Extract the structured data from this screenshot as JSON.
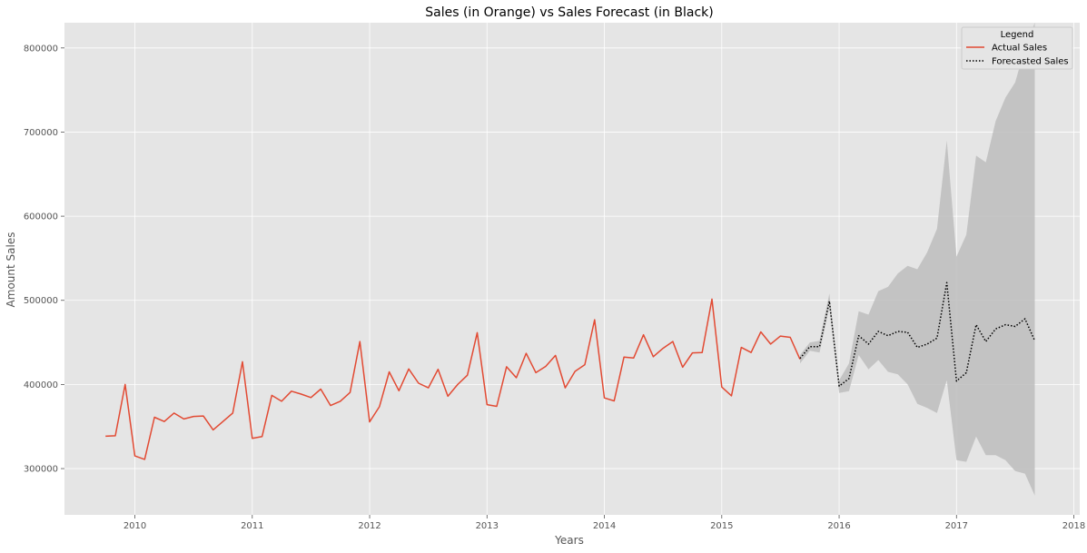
{
  "chart_data": {
    "type": "line",
    "title": "Sales (in Orange) vs Sales Forecast (in Black)",
    "xlabel": "Years",
    "ylabel": "Amount Sales",
    "xlim": [
      2009.4,
      2018.05
    ],
    "ylim": [
      245000,
      830000
    ],
    "grid": true,
    "x_ticks": [
      2010,
      2011,
      2012,
      2013,
      2014,
      2015,
      2016,
      2017,
      2018
    ],
    "x_tick_labels": [
      "2010",
      "2011",
      "2012",
      "2013",
      "2014",
      "2015",
      "2016",
      "2017",
      "2018"
    ],
    "y_ticks": [
      300000,
      400000,
      500000,
      600000,
      700000,
      800000
    ],
    "y_tick_labels": [
      "300000",
      "400000",
      "500000",
      "600000",
      "700000",
      "800000"
    ],
    "legend": {
      "title": "Legend",
      "position": "top-right",
      "entries": [
        "Actual Sales",
        "Forecasted Sales"
      ]
    },
    "colors": {
      "actual": "#e24a33",
      "forecast": "#000000",
      "band": "#bdbdbd",
      "background": "#e5e5e5",
      "grid": "#ffffff"
    },
    "series": [
      {
        "name": "Actual Sales",
        "style": "solid",
        "x_start": 2009.75,
        "x_step": 0.08333,
        "values": [
          338500,
          339000,
          400000,
          315000,
          311000,
          361000,
          356000,
          366000,
          359000,
          362000,
          362500,
          346000,
          356000,
          366000,
          427000,
          336000,
          338000,
          387000,
          380000,
          392000,
          388500,
          384500,
          394500,
          375000,
          380000,
          390500,
          451000,
          355500,
          373500,
          415000,
          392500,
          418500,
          401500,
          396000,
          418000,
          386000,
          400000,
          411000,
          461500,
          376000,
          374000,
          421000,
          408000,
          437000,
          414000,
          421500,
          434500,
          396000,
          415500,
          423500,
          477000,
          384000,
          380500,
          432500,
          431500,
          459000,
          433000,
          443000,
          451000,
          420500,
          437500,
          438000,
          501500,
          397000,
          386500,
          444000,
          438000,
          462500,
          448000,
          457500,
          456000,
          430000
        ]
      },
      {
        "name": "Forecasted Sales",
        "style": "dotted",
        "x_start": 2015.667,
        "x_step": 0.08333,
        "values": [
          431000,
          445000,
          445000,
          499000,
          398000,
          407000,
          458000,
          448000,
          463000,
          458000,
          463000,
          462000,
          444000,
          448000,
          455000,
          521000,
          404000,
          414000,
          471000,
          451000,
          466000,
          471000,
          469000,
          478000,
          452000
        ]
      }
    ],
    "confidence_band": {
      "x_start": 2015.667,
      "x_step": 0.08333,
      "lower": [
        425000,
        440000,
        438000,
        492000,
        390000,
        392000,
        435000,
        418000,
        429000,
        415000,
        412000,
        400000,
        377000,
        372000,
        366000,
        405000,
        310000,
        308000,
        338000,
        316000,
        316000,
        310000,
        297000,
        294000,
        268000
      ],
      "upper": [
        435000,
        450000,
        452000,
        508000,
        405000,
        425000,
        487000,
        483000,
        511000,
        516000,
        532000,
        541000,
        537000,
        557000,
        585000,
        690000,
        552000,
        578000,
        672000,
        664000,
        713000,
        741000,
        759000,
        800000,
        830000
      ]
    }
  }
}
